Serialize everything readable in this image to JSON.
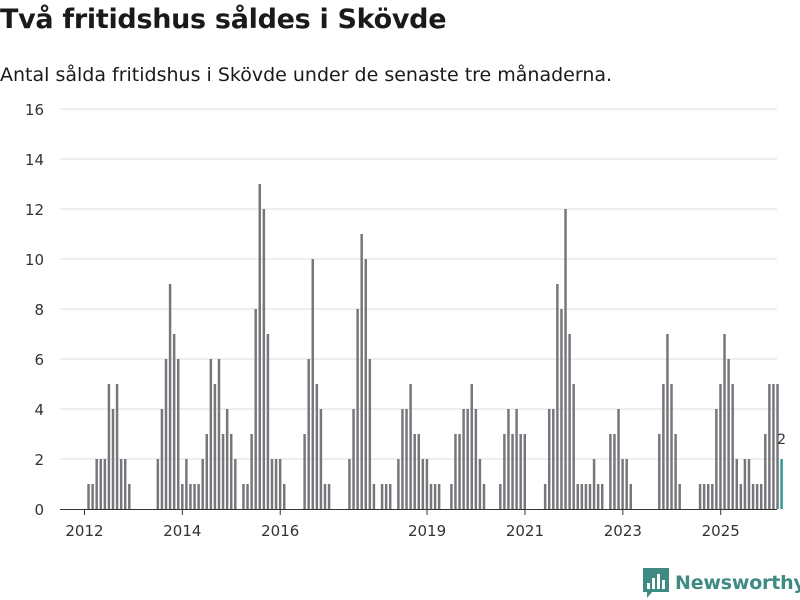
{
  "header": {
    "title": "Två fritidshus såldes i Skövde",
    "subtitle": "Antal sålda fritidshus i Skövde under de senaste tre månaderna."
  },
  "brand": {
    "name": "Newsworthy",
    "icon": "newsworthy-logo-icon",
    "color": "#3f8a82"
  },
  "colors": {
    "bar": "#77767b",
    "highlight": "#2b9a94",
    "grid": "#dddddd",
    "axis": "#333333"
  },
  "chart_data": {
    "type": "bar",
    "title": "Två fritidshus såldes i Skövde",
    "subtitle": "Antal sålda fritidshus i Skövde under de senaste tre månaderna.",
    "xlabel": "",
    "ylabel": "",
    "ylim": [
      0,
      16
    ],
    "y_ticks": [
      0,
      2,
      4,
      6,
      8,
      10,
      12,
      14,
      16
    ],
    "grid": true,
    "x_range": [
      2011.5,
      2026.15
    ],
    "x_ticks": [
      {
        "label": "2012",
        "value": 2012
      },
      {
        "label": "2014",
        "value": 2014
      },
      {
        "label": "2016",
        "value": 2016
      },
      {
        "label": "2019",
        "value": 2019
      },
      {
        "label": "2021",
        "value": 2021
      },
      {
        "label": "2023",
        "value": 2023
      },
      {
        "label": "2025",
        "value": 2025
      }
    ],
    "start": 2011.5,
    "step": 0.0833,
    "values": [
      0,
      0,
      0,
      0,
      0,
      0,
      0,
      1,
      1,
      2,
      2,
      2,
      5,
      4,
      5,
      2,
      2,
      1,
      0,
      0,
      0,
      0,
      0,
      0,
      2,
      4,
      6,
      9,
      7,
      6,
      1,
      2,
      1,
      1,
      1,
      2,
      3,
      6,
      5,
      6,
      3,
      4,
      3,
      2,
      0,
      1,
      1,
      3,
      8,
      13,
      12,
      7,
      2,
      2,
      2,
      1,
      0,
      0,
      0,
      0,
      3,
      6,
      10,
      5,
      4,
      1,
      1,
      0,
      0,
      0,
      0,
      2,
      4,
      8,
      11,
      10,
      6,
      1,
      0,
      1,
      1,
      1,
      0,
      2,
      4,
      4,
      5,
      3,
      3,
      2,
      2,
      1,
      1,
      1,
      0,
      0,
      1,
      3,
      3,
      4,
      4,
      5,
      4,
      2,
      1,
      0,
      0,
      0,
      1,
      3,
      4,
      3,
      4,
      3,
      3,
      0,
      0,
      0,
      0,
      1,
      4,
      4,
      9,
      8,
      12,
      7,
      5,
      1,
      1,
      1,
      1,
      2,
      1,
      1,
      0,
      3,
      3,
      4,
      2,
      2,
      1,
      0,
      0,
      0,
      0,
      0,
      0,
      3,
      5,
      7,
      5,
      3,
      1,
      0,
      0,
      0,
      0,
      1,
      1,
      1,
      1,
      4,
      5,
      7,
      6,
      5,
      2,
      1,
      2,
      2,
      1,
      1,
      1,
      3,
      5,
      5,
      5,
      2
    ],
    "highlight_last": true,
    "annotation": {
      "label": "2",
      "value": 2
    }
  }
}
